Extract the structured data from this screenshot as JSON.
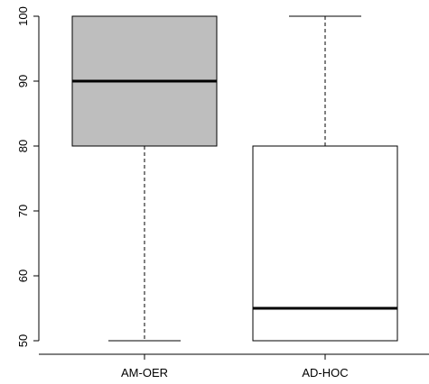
{
  "chart_data": {
    "type": "boxplot",
    "title": "",
    "xlabel": "",
    "ylabel": "",
    "ylim": [
      50,
      100
    ],
    "y_ticks": [
      "50",
      "60",
      "70",
      "80",
      "90",
      "100"
    ],
    "grid": false,
    "categories": [
      "AM-OER",
      "AD-HOC"
    ],
    "boxes": [
      {
        "label": "AM-OER",
        "min": 50,
        "q1": 80,
        "median": 90,
        "q3": 100,
        "max": 100,
        "fill": "#bebebe"
      },
      {
        "label": "AD-HOC",
        "min": 50,
        "q1": 50,
        "median": 55,
        "q3": 80,
        "max": 100,
        "fill": "#ffffff"
      }
    ]
  }
}
